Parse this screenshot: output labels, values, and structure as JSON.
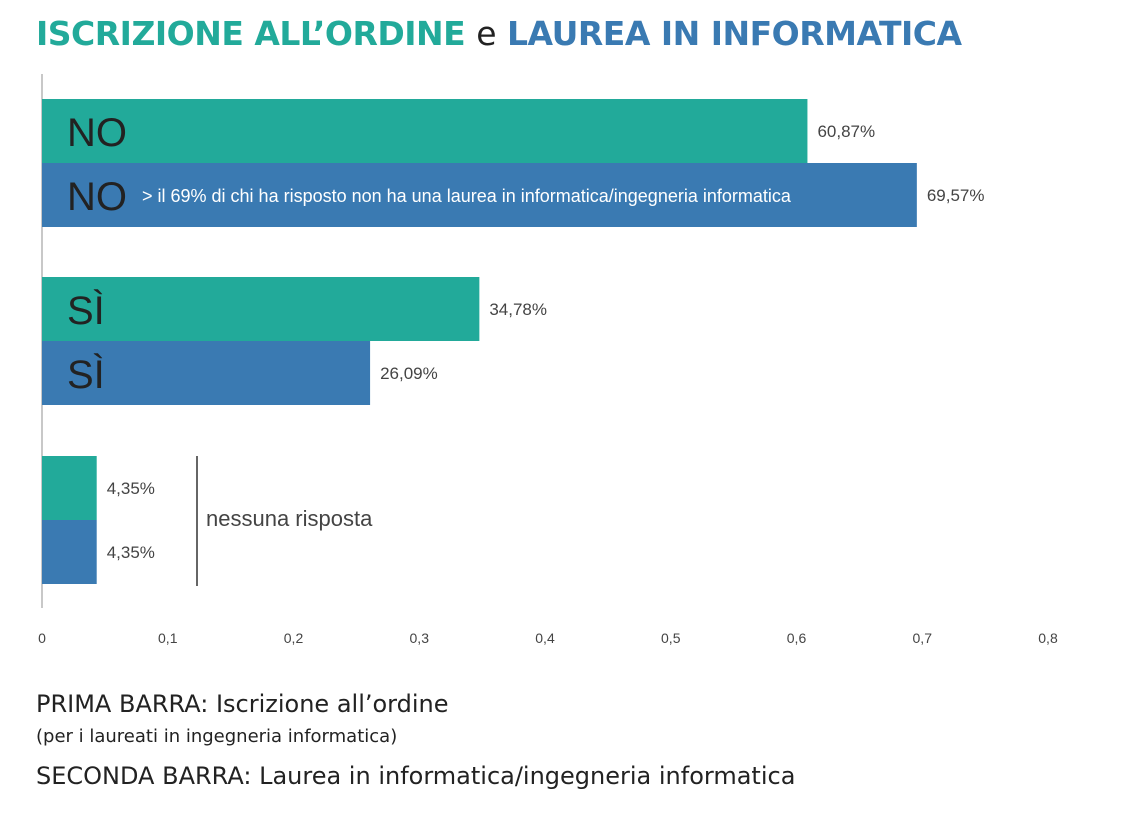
{
  "title": {
    "part1": "ISCRIZIONE ALL’ORDINE",
    "connector": "e",
    "part2": "LAUREA IN INFORMATICA"
  },
  "colors": {
    "series1": "#22aa9a",
    "series2": "#3a7ab2",
    "axis": "#c8c8c8",
    "text": "#222222",
    "value_text": "#444444"
  },
  "chart_data": {
    "type": "bar",
    "orientation": "horizontal",
    "categories": [
      "NO",
      "SÌ",
      "nessuna risposta"
    ],
    "category_labels": [
      [
        "NO",
        "NO"
      ],
      [
        "SÌ",
        "SÌ"
      ],
      [
        "",
        ""
      ]
    ],
    "series": [
      {
        "values": [
          0.6087,
          0.3478,
          0.0435
        ],
        "value_labels": [
          "60,87%",
          "34,78%",
          "4,35%"
        ]
      },
      {
        "values": [
          0.6957,
          0.2609,
          0.0435
        ],
        "value_labels": [
          "69,57%",
          "26,09%",
          "4,35%"
        ]
      }
    ],
    "annotations": {
      "no_second_bar": "> il 69% di chi ha risposto non ha una laurea in informatica/ingegneria informatica",
      "no_response": "nessuna risposta"
    },
    "xlim": [
      0,
      0.8
    ],
    "xticks": [
      0,
      0.1,
      0.2,
      0.3,
      0.4,
      0.5,
      0.6,
      0.7,
      0.8
    ],
    "xtick_labels": [
      "0",
      "0,1",
      "0,2",
      "0,3",
      "0,4",
      "0,5",
      "0,6",
      "0,7",
      "0,8"
    ],
    "grid": false,
    "legend": "below"
  },
  "legend": {
    "first_bar": "PRIMA BARRA: Iscrizione all’ordine",
    "first_bar_note": "(per i laureati in ingegneria informatica)",
    "second_bar": "SECONDA BARRA: Laurea in informatica/ingegneria informatica"
  }
}
